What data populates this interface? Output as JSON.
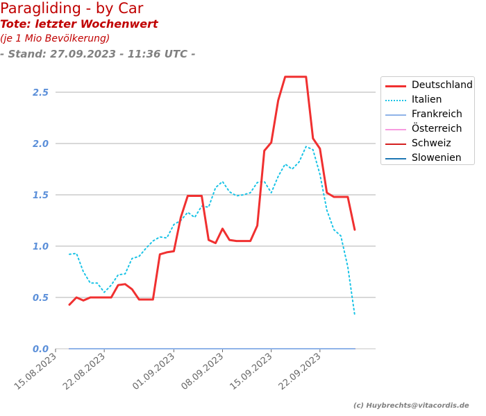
{
  "chart_data": {
    "type": "line",
    "title": "Paragliding - by Car",
    "subtitle": "Tote: letzter Wochenwert",
    "subtitle2": "(je 1 Mio Bevölkerung)",
    "stand": "- Stand: 27.09.2023 - 11:36 UTC -",
    "xlabel": "",
    "ylabel": "",
    "ylim": [
      0,
      2.75
    ],
    "xlim": [
      "2023-08-15",
      "2023-09-30"
    ],
    "grid": "horizontal",
    "legend_position": "right-top",
    "yticks": [
      "0.0",
      "0.5",
      "1.0",
      "1.5",
      "2.0",
      "2.5"
    ],
    "ytick_values": [
      0,
      0.5,
      1.0,
      1.5,
      2.0,
      2.5
    ],
    "xticks": [
      "15.08.2023",
      "22.08.2023",
      "01.09.2023",
      "08.09.2023",
      "15.09.2023",
      "22.09.2023"
    ],
    "xtick_dates": [
      "2023-08-15",
      "2023-08-22",
      "2023-09-01",
      "2023-09-08",
      "2023-09-15",
      "2023-09-22"
    ],
    "x": [
      "2023-08-17",
      "2023-08-18",
      "2023-08-19",
      "2023-08-20",
      "2023-08-21",
      "2023-08-22",
      "2023-08-23",
      "2023-08-24",
      "2023-08-25",
      "2023-08-26",
      "2023-08-27",
      "2023-08-28",
      "2023-08-29",
      "2023-08-30",
      "2023-08-31",
      "2023-09-01",
      "2023-09-02",
      "2023-09-03",
      "2023-09-04",
      "2023-09-05",
      "2023-09-06",
      "2023-09-07",
      "2023-09-08",
      "2023-09-09",
      "2023-09-10",
      "2023-09-11",
      "2023-09-12",
      "2023-09-13",
      "2023-09-14",
      "2023-09-15",
      "2023-09-16",
      "2023-09-17",
      "2023-09-18",
      "2023-09-19",
      "2023-09-20",
      "2023-09-21",
      "2023-09-22",
      "2023-09-23",
      "2023-09-24",
      "2023-09-25",
      "2023-09-26",
      "2023-09-27"
    ],
    "series": [
      {
        "name": "Deutschland",
        "color": "#f03030",
        "style": "solid",
        "width": 3,
        "values": [
          0.43,
          0.5,
          0.47,
          0.5,
          0.5,
          0.5,
          0.5,
          0.62,
          0.63,
          0.58,
          0.48,
          0.48,
          0.48,
          0.92,
          0.94,
          0.95,
          1.28,
          1.49,
          1.49,
          1.49,
          1.06,
          1.03,
          1.17,
          1.06,
          1.05,
          1.05,
          1.05,
          1.2,
          1.93,
          2.01,
          2.42,
          2.65,
          2.65,
          2.65,
          2.65,
          2.05,
          1.95,
          1.52,
          1.48,
          1.48,
          1.48,
          1.16
        ]
      },
      {
        "name": "Italien",
        "color": "#19c3e6",
        "style": "dotted",
        "width": 2,
        "values": [
          0.92,
          0.93,
          0.75,
          0.64,
          0.64,
          0.55,
          0.62,
          0.72,
          0.73,
          0.88,
          0.9,
          0.98,
          1.05,
          1.09,
          1.08,
          1.21,
          1.25,
          1.33,
          1.28,
          1.39,
          1.38,
          1.57,
          1.63,
          1.53,
          1.49,
          1.5,
          1.52,
          1.62,
          1.63,
          1.52,
          1.68,
          1.8,
          1.75,
          1.82,
          1.97,
          1.94,
          1.7,
          1.35,
          1.16,
          1.1,
          0.8,
          0.33
        ]
      },
      {
        "name": "Frankreich",
        "color": "#8fb3e8",
        "style": "solid",
        "width": 2,
        "values": [
          0,
          0,
          0,
          0,
          0,
          0,
          0,
          0,
          0,
          0,
          0,
          0,
          0,
          0,
          0,
          0,
          0,
          0,
          0,
          0,
          0,
          0,
          0,
          0,
          0,
          0,
          0,
          0,
          0,
          0,
          0,
          0,
          0,
          0,
          0,
          0,
          0,
          0,
          0,
          0,
          0,
          0
        ]
      },
      {
        "name": "Österreich",
        "color": "#f79be0",
        "style": "solid",
        "width": 2,
        "values": [
          0,
          0,
          0,
          0,
          0,
          0,
          0,
          0,
          0,
          0,
          0,
          0,
          0,
          0,
          0,
          0,
          0,
          0,
          0,
          0,
          0,
          0,
          0,
          0,
          0,
          0,
          0,
          0,
          0,
          0,
          0,
          0,
          0,
          0,
          0,
          0,
          0,
          0,
          0,
          0,
          0,
          0
        ]
      },
      {
        "name": "Schweiz",
        "color": "#d42020",
        "style": "solid",
        "width": 2,
        "values": [
          0,
          0,
          0,
          0,
          0,
          0,
          0,
          0,
          0,
          0,
          0,
          0,
          0,
          0,
          0,
          0,
          0,
          0,
          0,
          0,
          0,
          0,
          0,
          0,
          0,
          0,
          0,
          0,
          0,
          0,
          0,
          0,
          0,
          0,
          0,
          0,
          0,
          0,
          0,
          0,
          0,
          0
        ]
      },
      {
        "name": "Slowenien",
        "color": "#1f77b4",
        "style": "solid",
        "width": 2,
        "values": [
          0,
          0,
          0,
          0,
          0,
          0,
          0,
          0,
          0,
          0,
          0,
          0,
          0,
          0,
          0,
          0,
          0,
          0,
          0,
          0,
          0,
          0,
          0,
          0,
          0,
          0,
          0,
          0,
          0,
          0,
          0,
          0,
          0,
          0,
          0,
          0,
          0,
          0,
          0,
          0,
          0,
          0
        ]
      }
    ]
  },
  "credit": "(c) Huybrechts@vitacordis.de"
}
